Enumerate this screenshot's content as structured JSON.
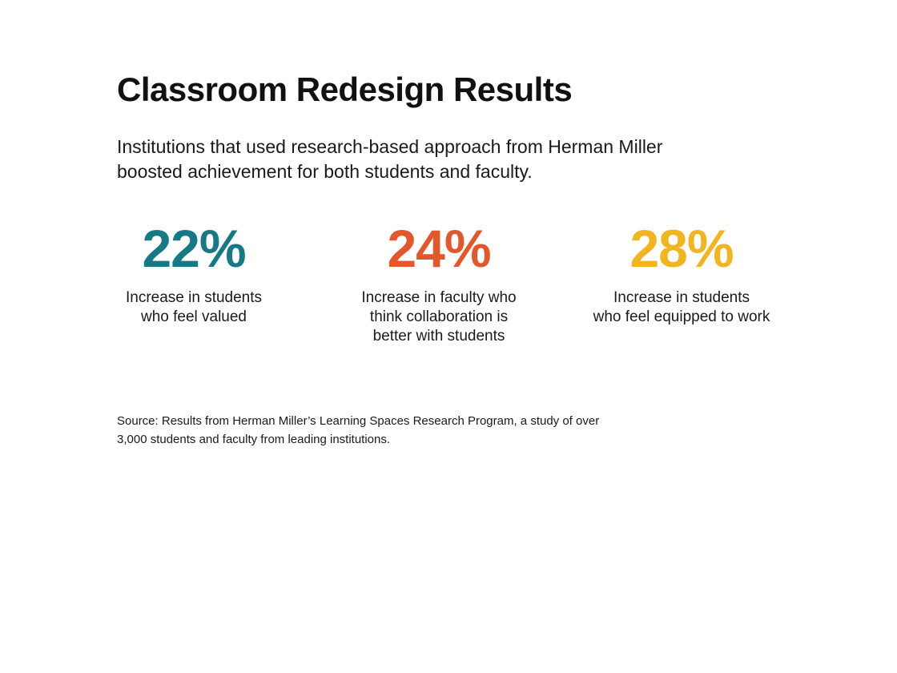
{
  "title": "Classroom Redesign Results",
  "subtitle_lines": [
    "Institutions that used research-based approach from Herman Miller",
    "boosted achievement for both students and faculty."
  ],
  "colors": {
    "teal": "#157a86",
    "orange": "#e3572a",
    "yellow": "#f2b41f"
  },
  "chart_data": {
    "type": "table",
    "unit": "%",
    "items": [
      {
        "value": 22,
        "display": "22%",
        "color": "#157a86",
        "label_lines": [
          "Increase in students",
          "who feel valued"
        ]
      },
      {
        "value": 24,
        "display": "24%",
        "color": "#e3572a",
        "label_lines": [
          "Increase in faculty who",
          "think collaboration is",
          "better with students"
        ]
      },
      {
        "value": 28,
        "display": "28%",
        "color": "#f2b41f",
        "label_lines": [
          "Increase in students",
          "who feel equipped to work"
        ]
      }
    ]
  },
  "source_lines": [
    "Source: Results from Herman Miller’s Learning Spaces Research Program, a study of over",
    "3,000 students and faculty from leading institutions."
  ]
}
